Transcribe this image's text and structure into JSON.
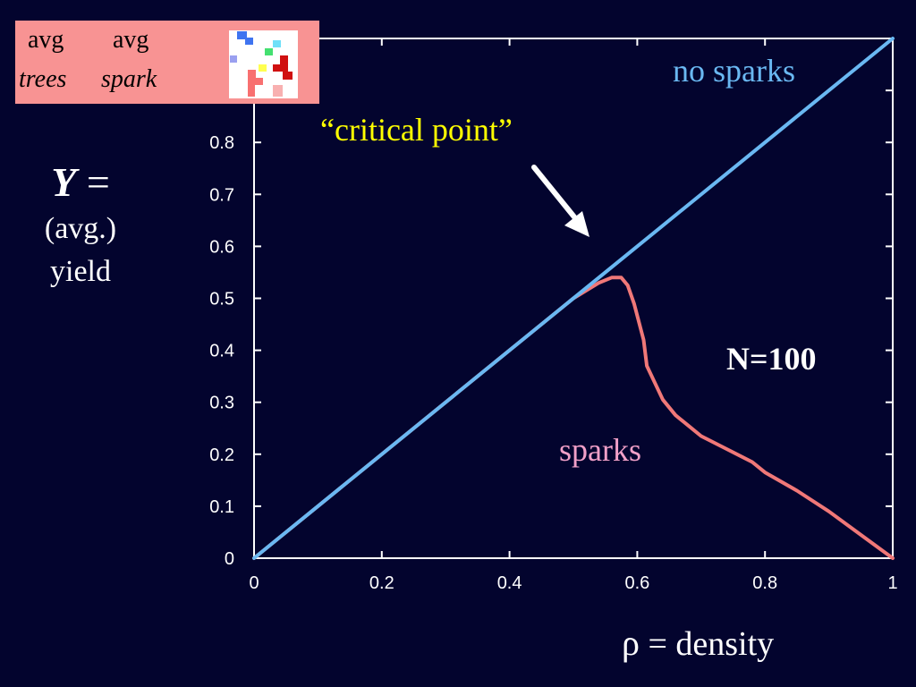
{
  "legend": {
    "col1_top": "avg",
    "col1_bottom": "trees",
    "col2_top": "avg",
    "col2_bottom": "spark"
  },
  "ylabel": {
    "symbol": "Y",
    "equals": "=",
    "line2": "(avg.)",
    "line3": "yield"
  },
  "xlabel": {
    "symbol": "ρ",
    "text": "= density"
  },
  "annotations": {
    "critical_point": "“critical point”",
    "no_sparks": "no sparks",
    "sparks": "sparks",
    "n_label": "N=100"
  },
  "colors": {
    "background": "#03042e",
    "no_sparks": "#6ab8f2",
    "sparks": "#f07878",
    "sparks_label": "#f2a0c8",
    "critical": "#ffff00",
    "legend_bg": "#f89393"
  },
  "chart_data": {
    "type": "line",
    "xlim": [
      0,
      1
    ],
    "ylim": [
      0,
      1
    ],
    "x_ticks": [
      "0",
      "0.2",
      "0.4",
      "0.6",
      "0.8",
      "1"
    ],
    "y_ticks": [
      "0",
      "0.1",
      "0.2",
      "0.3",
      "0.4",
      "0.5",
      "0.6",
      "0.7",
      "0.8"
    ],
    "series": [
      {
        "name": "no sparks",
        "points": [
          [
            0,
            0
          ],
          [
            1,
            1
          ]
        ]
      },
      {
        "name": "sparks",
        "points": [
          [
            0,
            0
          ],
          [
            0.1,
            0.1
          ],
          [
            0.2,
            0.2
          ],
          [
            0.3,
            0.3
          ],
          [
            0.4,
            0.4
          ],
          [
            0.5,
            0.5
          ],
          [
            0.52,
            0.515
          ],
          [
            0.54,
            0.53
          ],
          [
            0.56,
            0.54
          ],
          [
            0.575,
            0.54
          ],
          [
            0.585,
            0.525
          ],
          [
            0.595,
            0.49
          ],
          [
            0.61,
            0.42
          ],
          [
            0.615,
            0.37
          ],
          [
            0.64,
            0.305
          ],
          [
            0.66,
            0.275
          ],
          [
            0.68,
            0.255
          ],
          [
            0.7,
            0.235
          ],
          [
            0.74,
            0.21
          ],
          [
            0.78,
            0.185
          ],
          [
            0.8,
            0.165
          ],
          [
            0.85,
            0.13
          ],
          [
            0.9,
            0.09
          ],
          [
            0.95,
            0.045
          ],
          [
            1.0,
            0.0
          ]
        ]
      }
    ]
  }
}
